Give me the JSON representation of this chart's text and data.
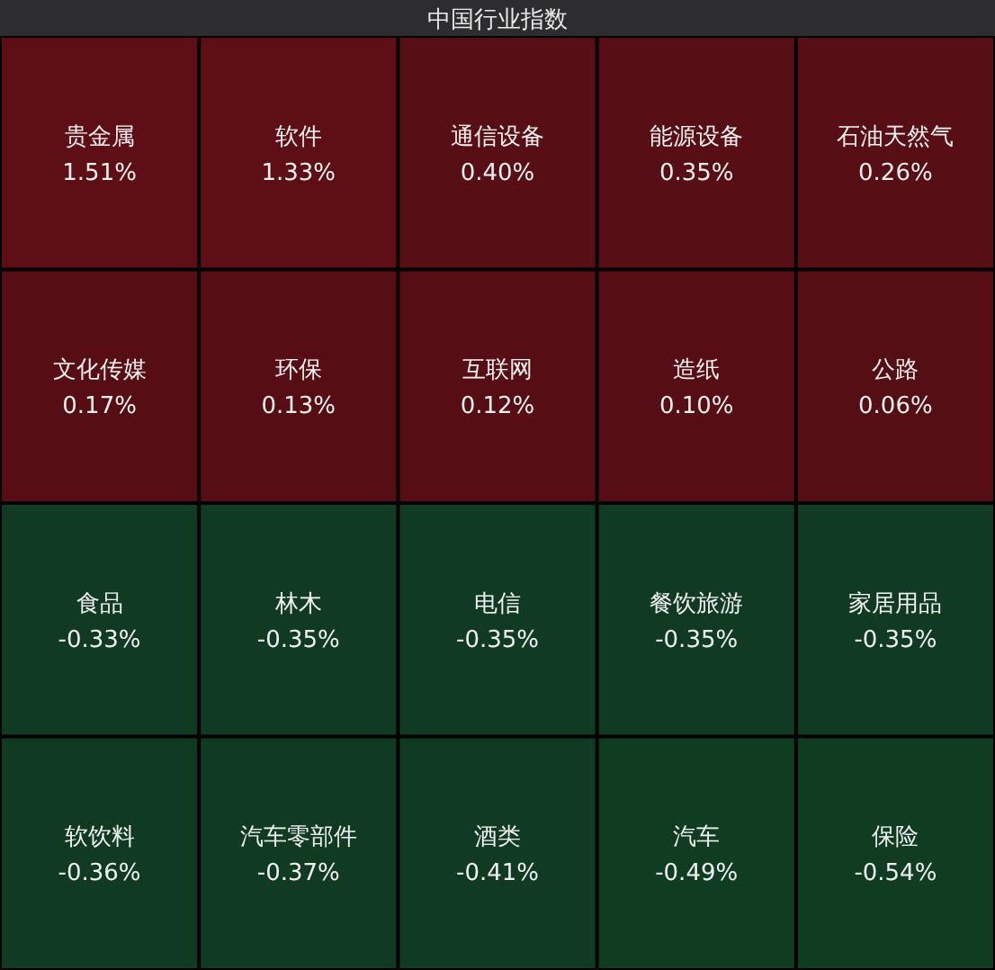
{
  "chart_data": {
    "type": "other",
    "title": "中国行业指数",
    "categories": [
      "贵金属",
      "软件",
      "通信设备",
      "能源设备",
      "石油天然气",
      "文化传媒",
      "环保",
      "互联网",
      "造纸",
      "公路",
      "食品",
      "林木",
      "电信",
      "餐饮旅游",
      "家居用品",
      "软饮料",
      "汽车零部件",
      "酒类",
      "汽车",
      "保险"
    ],
    "values": [
      1.51,
      1.33,
      0.4,
      0.35,
      0.26,
      0.17,
      0.13,
      0.12,
      0.1,
      0.06,
      -0.33,
      -0.35,
      -0.35,
      -0.35,
      -0.35,
      -0.36,
      -0.37,
      -0.41,
      -0.49,
      -0.54
    ],
    "value_labels": [
      "1.51%",
      "1.33%",
      "0.40%",
      "0.35%",
      "0.26%",
      "0.17%",
      "0.13%",
      "0.12%",
      "0.10%",
      "0.06%",
      "-0.33%",
      "-0.35%",
      "-0.35%",
      "-0.35%",
      "-0.35%",
      "-0.36%",
      "-0.37%",
      "-0.41%",
      "-0.49%",
      "-0.54%"
    ],
    "colors": [
      "#5e0f16",
      "#5e0f16",
      "#5e0f16",
      "#5e0f16",
      "#5e0f16",
      "#5e0f16",
      "#5e0f16",
      "#5e0f16",
      "#5e0f16",
      "#5e0f16",
      "#113f24",
      "#113f24",
      "#113f24",
      "#113f24",
      "#113f24",
      "#113f24",
      "#113f24",
      "#113f24",
      "#113f24",
      "#113f24"
    ]
  }
}
